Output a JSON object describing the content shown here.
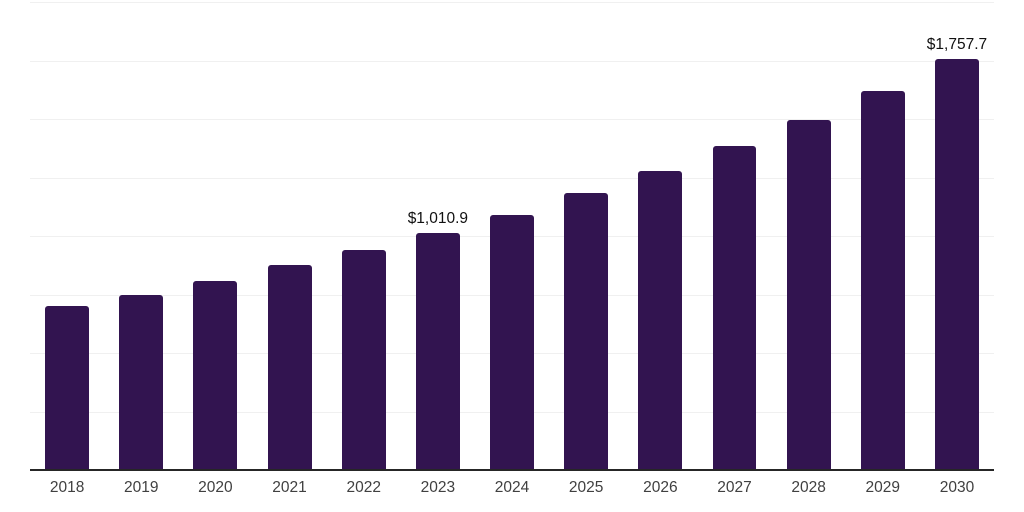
{
  "chart_data": {
    "type": "bar",
    "title": "",
    "xlabel": "",
    "ylabel": "",
    "categories": [
      "2018",
      "2019",
      "2020",
      "2021",
      "2022",
      "2023",
      "2024",
      "2025",
      "2026",
      "2027",
      "2028",
      "2029",
      "2030"
    ],
    "values": [
      700,
      750,
      810,
      875,
      939,
      1010.9,
      1092,
      1183,
      1277,
      1383,
      1496,
      1622,
      1757.7
    ],
    "data_labels": [
      "",
      "",
      "",
      "",
      "",
      "$1,010.9",
      "",
      "",
      "",
      "",
      "",
      "",
      "$1,757.7"
    ],
    "ylim": [
      0,
      2000
    ],
    "gridline_interval": 250,
    "grid": "horizontal-only",
    "legend_position": "none",
    "bar_color": "#321450",
    "axis_line_color": "#262626",
    "gridline_color": "#f0f0f0",
    "tick_label_color": "#404040",
    "data_label_color": "#111111"
  }
}
